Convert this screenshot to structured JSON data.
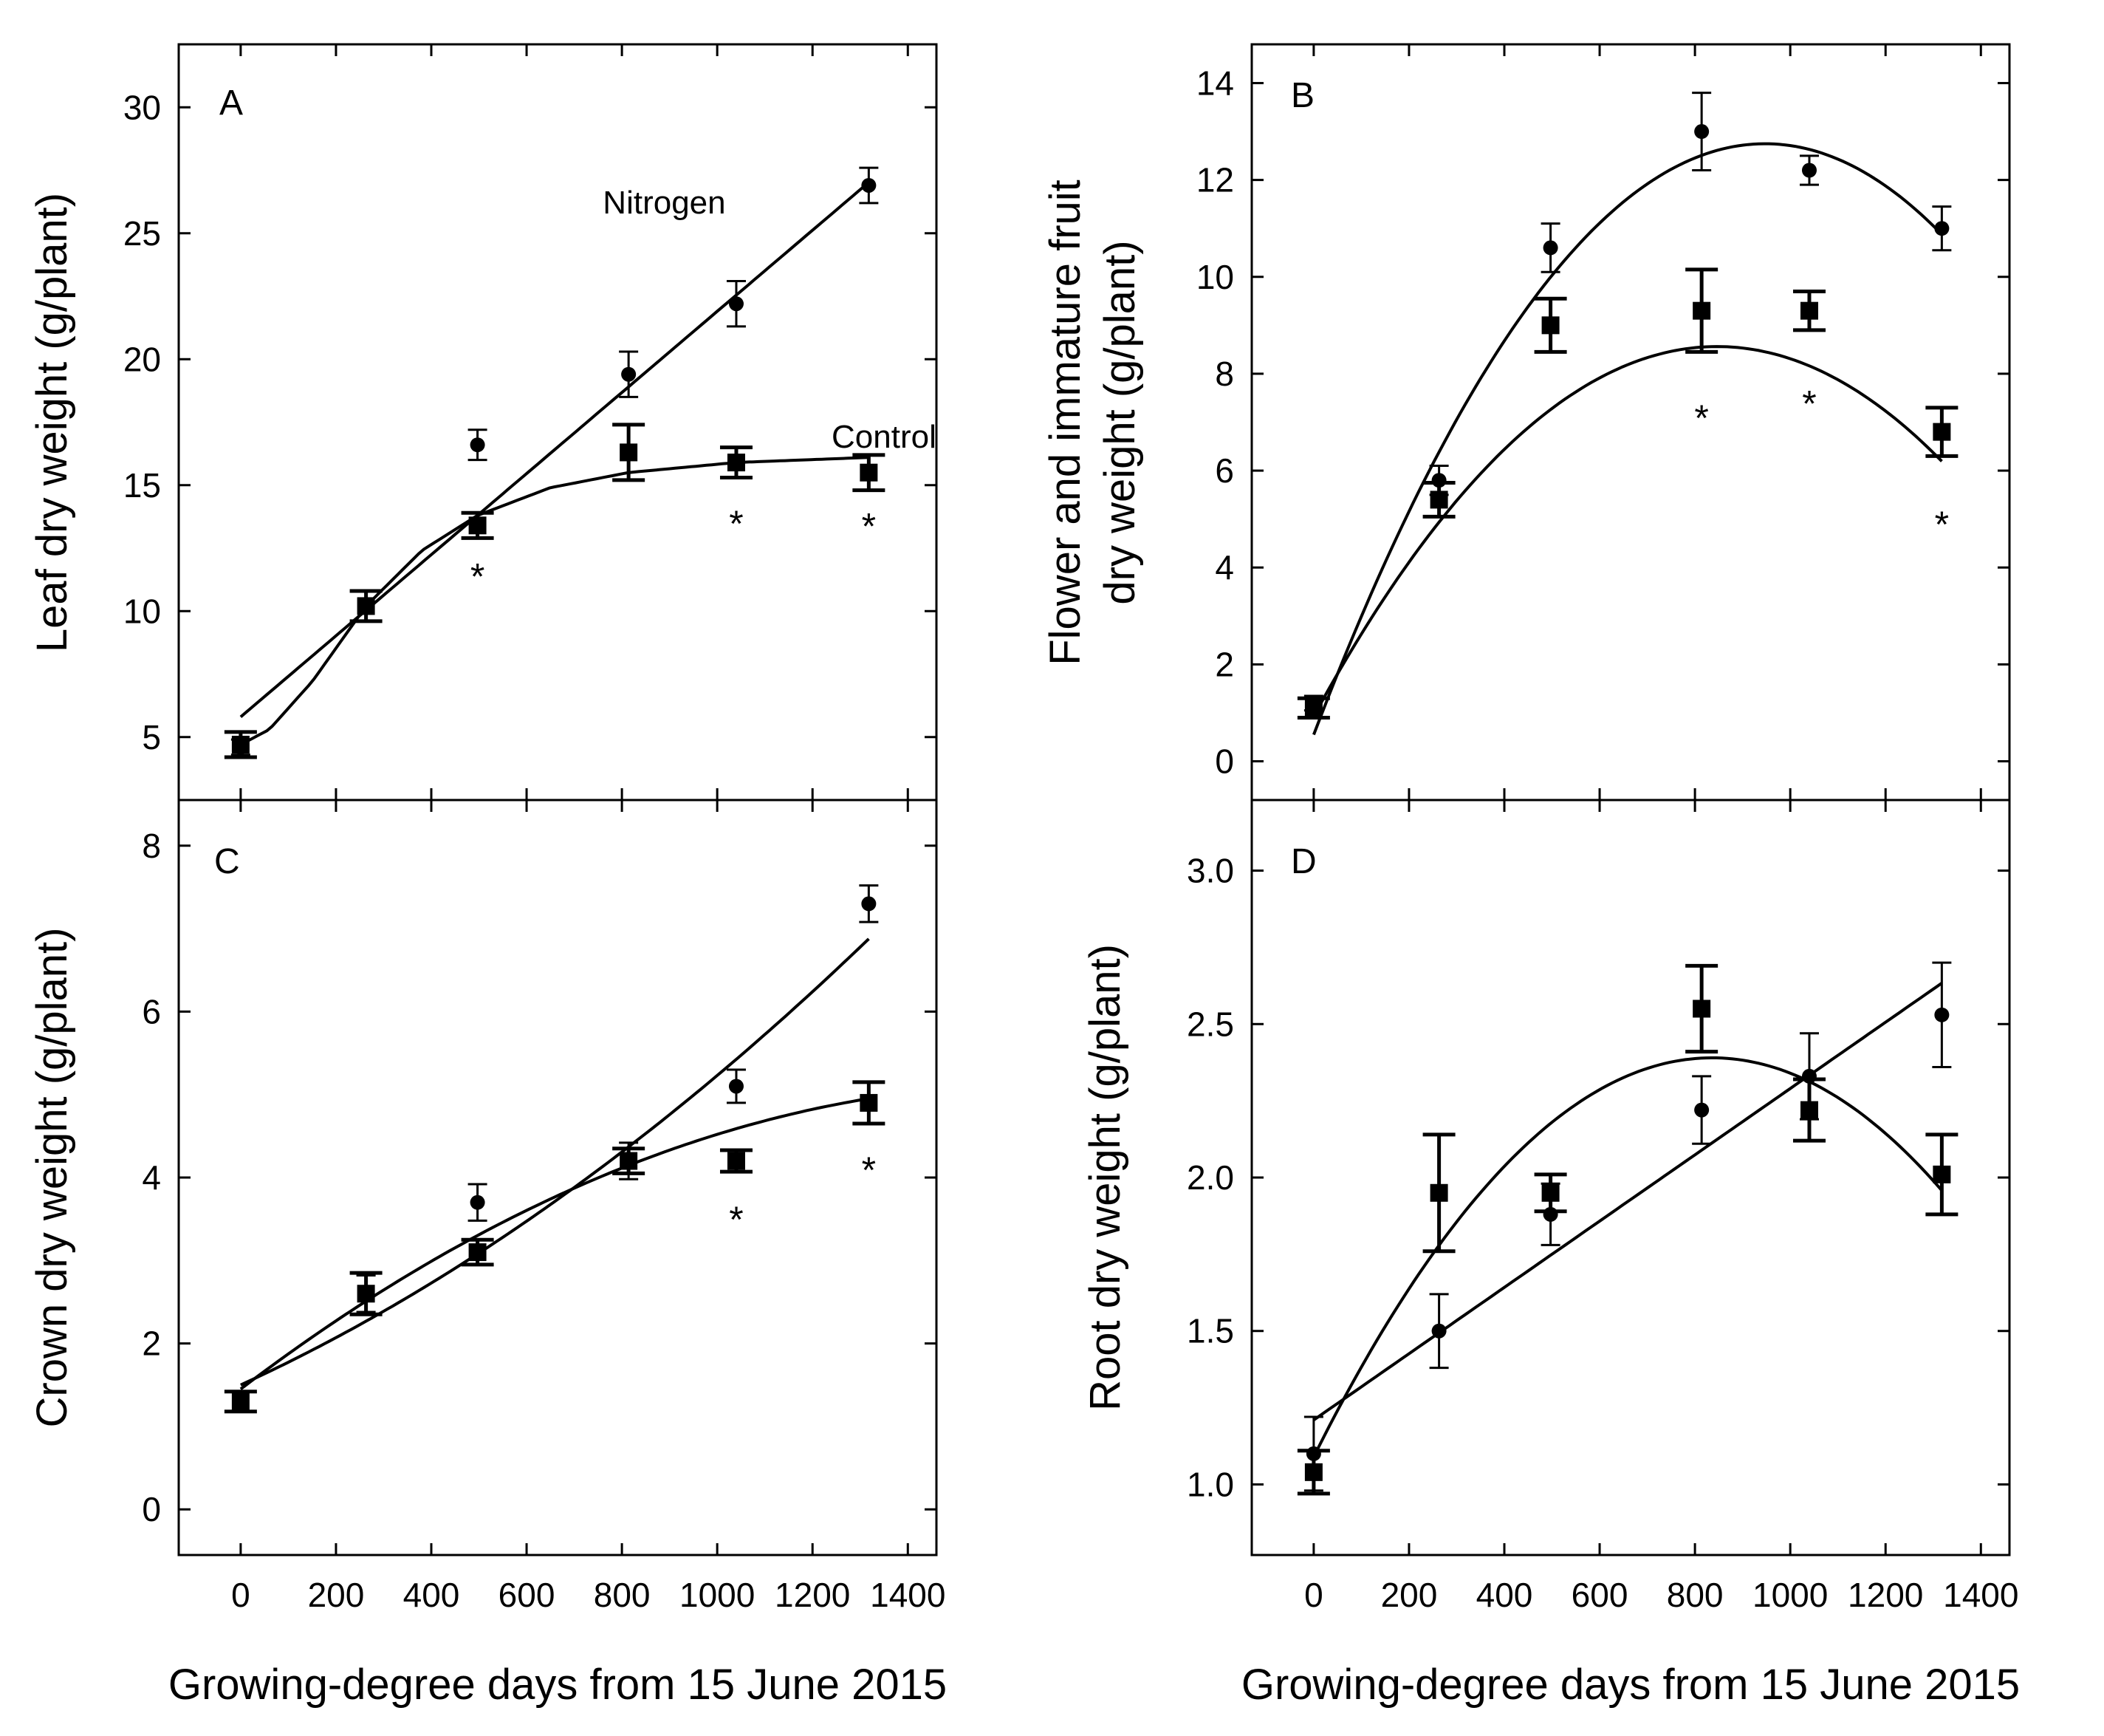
{
  "figure": {
    "x_axis_title": "Growing-degree days from 15 June 2015",
    "x_ticks": [
      0,
      200,
      400,
      600,
      800,
      1000,
      1200,
      1400
    ],
    "x_tick_labels": [
      "0",
      "200",
      "400",
      "600",
      "800",
      "1000",
      "1200",
      "1400"
    ],
    "xlim": [
      -130,
      1460
    ],
    "series_names": [
      "Nitrogen",
      "Control"
    ],
    "marker_styles": {
      "Nitrogen": "circle",
      "Control": "square"
    },
    "ink_color": "#000000",
    "background_color": "#ffffff"
  },
  "chart_data": [
    {
      "id": "A",
      "type": "scatter",
      "panel_label": "A",
      "ylabel_lines": [
        "Leaf dry weight (g/plant)"
      ],
      "xlabel": "Growing-degree days from 15 June 2015",
      "ylim": [
        2.5,
        32.5
      ],
      "y_ticks": [
        5,
        10,
        15,
        20,
        25,
        30
      ],
      "y_tick_labels": [
        "5",
        "10",
        "15",
        "20",
        "25",
        "30"
      ],
      "series": [
        {
          "name": "Nitrogen",
          "marker": "circle",
          "x": [
            0,
            263,
            497,
            814,
            1040,
            1318
          ],
          "y": [
            4.6,
            10.2,
            16.6,
            19.4,
            22.2,
            26.9
          ],
          "err": [
            0.3,
            0.6,
            0.6,
            0.9,
            0.9,
            0.7
          ],
          "fit": {
            "kind": "linear",
            "intercept": 5.8,
            "slope": 0.0161,
            "x_range": [
              0,
              1318
            ]
          }
        },
        {
          "name": "Control",
          "marker": "square",
          "x": [
            0,
            263,
            497,
            814,
            1040,
            1318
          ],
          "y": [
            4.7,
            10.2,
            13.4,
            16.3,
            15.9,
            15.5
          ],
          "err": [
            0.5,
            0.6,
            0.5,
            1.1,
            0.6,
            0.7
          ],
          "fit": {
            "kind": "sigmoid",
            "x_range": [
              0,
              1318
            ],
            "points": [
              [
                0,
                4.7
              ],
              [
                60,
                5.3
              ],
              [
                150,
                7.2
              ],
              [
                263,
                10.2
              ],
              [
                380,
                12.4
              ],
              [
                497,
                13.8
              ],
              [
                650,
                14.9
              ],
              [
                814,
                15.5
              ],
              [
                1040,
                15.9
              ],
              [
                1318,
                16.1
              ]
            ]
          }
        }
      ],
      "annotations": [
        {
          "text": "Nitrogen",
          "x": 760,
          "y": 26.2
        },
        {
          "text": "Control",
          "x": 1240,
          "y": 16.9
        }
      ],
      "significance": [
        {
          "text": "*",
          "x": 497,
          "y": 11.4
        },
        {
          "text": "*",
          "x": 1040,
          "y": 13.5
        },
        {
          "text": "*",
          "x": 1318,
          "y": 13.4
        }
      ]
    },
    {
      "id": "B",
      "type": "scatter",
      "panel_label": "B",
      "ylabel_lines": [
        "Flower and immature fruit",
        "dry weight (g/plant)"
      ],
      "xlabel": "Growing-degree days from 15 June 2015",
      "ylim": [
        -0.8,
        14.8
      ],
      "y_ticks": [
        0,
        2,
        4,
        6,
        8,
        10,
        12,
        14
      ],
      "y_tick_labels": [
        "0",
        "2",
        "4",
        "6",
        "8",
        "10",
        "12",
        "14"
      ],
      "series": [
        {
          "name": "Nitrogen",
          "marker": "circle",
          "x": [
            0,
            263,
            497,
            814,
            1040,
            1318
          ],
          "y": [
            1.2,
            5.8,
            10.6,
            13.0,
            12.2,
            11.0
          ],
          "err": [
            0.15,
            0.3,
            0.5,
            0.8,
            0.3,
            0.45
          ],
          "fit": {
            "kind": "quadratic",
            "a": -1.36e-05,
            "b": 0.02576,
            "c": 0.55,
            "x_range": [
              0,
              1318
            ]
          }
        },
        {
          "name": "Control",
          "marker": "square",
          "x": [
            0,
            263,
            497,
            814,
            1040,
            1318
          ],
          "y": [
            1.1,
            5.4,
            9.0,
            9.3,
            9.3,
            6.8
          ],
          "err": [
            0.2,
            0.35,
            0.55,
            0.85,
            0.4,
            0.5
          ],
          "fit": {
            "kind": "quadratic",
            "a": -1.065e-05,
            "b": 0.01803,
            "c": 0.93,
            "x_range": [
              0,
              1318
            ]
          }
        }
      ],
      "annotations": [],
      "significance": [
        {
          "text": "*",
          "x": 814,
          "y": 7.1
        },
        {
          "text": "*",
          "x": 1040,
          "y": 7.4
        },
        {
          "text": "*",
          "x": 1318,
          "y": 4.9
        }
      ]
    },
    {
      "id": "C",
      "type": "scatter",
      "panel_label": "C",
      "ylabel_lines": [
        "Crown dry weight (g/plant)"
      ],
      "xlabel": "Growing-degree days from 15 June 2015",
      "ylim": [
        -0.55,
        8.55
      ],
      "y_ticks": [
        0,
        2,
        4,
        6,
        8
      ],
      "y_tick_labels": [
        "0",
        "2",
        "4",
        "6",
        "8"
      ],
      "series": [
        {
          "name": "Nitrogen",
          "marker": "circle",
          "x": [
            0,
            263,
            497,
            814,
            1040,
            1318
          ],
          "y": [
            1.3,
            2.6,
            3.7,
            4.2,
            5.1,
            7.3
          ],
          "err": [
            0.12,
            0.22,
            0.22,
            0.22,
            0.2,
            0.22
          ],
          "fit": {
            "kind": "quadratic",
            "a": 1.1e-06,
            "b": 0.00263,
            "c": 1.5,
            "x_range": [
              0,
              1318
            ]
          }
        },
        {
          "name": "Control",
          "marker": "square",
          "x": [
            0,
            263,
            497,
            814,
            1040,
            1318
          ],
          "y": [
            1.3,
            2.6,
            3.1,
            4.2,
            4.2,
            4.9
          ],
          "err": [
            0.12,
            0.25,
            0.15,
            0.15,
            0.13,
            0.25
          ],
          "fit": {
            "kind": "quadratic",
            "a": -1.3e-06,
            "b": 0.00437,
            "c": 1.45,
            "x_range": [
              0,
              1318
            ]
          }
        }
      ],
      "annotations": [],
      "significance": [
        {
          "text": "*",
          "x": 1040,
          "y": 3.5
        },
        {
          "text": "*",
          "x": 1318,
          "y": 4.1
        }
      ]
    },
    {
      "id": "D",
      "type": "scatter",
      "panel_label": "D",
      "ylabel_lines": [
        "Root dry weight (g/plant)"
      ],
      "xlabel": "Growing-degree days from 15 June 2015",
      "ylim": [
        0.77,
        3.23
      ],
      "y_ticks": [
        1.0,
        1.5,
        2.0,
        2.5,
        3.0
      ],
      "y_tick_labels": [
        "1.0",
        "1.5",
        "2.0",
        "2.5",
        "3.0"
      ],
      "series": [
        {
          "name": "Nitrogen",
          "marker": "circle",
          "x": [
            0,
            263,
            497,
            814,
            1040,
            1318
          ],
          "y": [
            1.1,
            1.5,
            1.88,
            2.22,
            2.33,
            2.53
          ],
          "err": [
            0.12,
            0.12,
            0.1,
            0.11,
            0.14,
            0.17
          ],
          "fit": {
            "kind": "linear",
            "intercept": 1.21,
            "slope": 0.00108,
            "x_range": [
              0,
              1318
            ]
          }
        },
        {
          "name": "Control",
          "marker": "square",
          "x": [
            0,
            263,
            497,
            814,
            1040,
            1318
          ],
          "y": [
            1.04,
            1.95,
            1.95,
            2.55,
            2.22,
            2.01
          ],
          "err": [
            0.07,
            0.19,
            0.06,
            0.14,
            0.1,
            0.13
          ],
          "fit": {
            "kind": "quadratic",
            "a": -1.86e-06,
            "b": 0.00311,
            "c": 1.09,
            "x_range": [
              0,
              1318
            ]
          }
        }
      ],
      "annotations": [],
      "significance": []
    }
  ]
}
